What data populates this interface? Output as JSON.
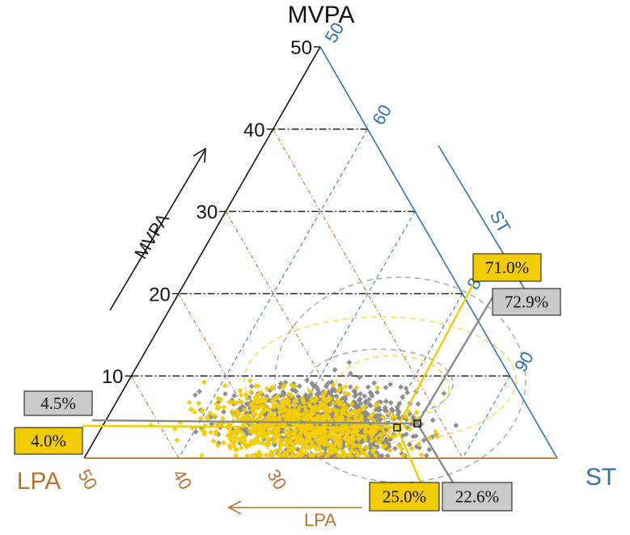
{
  "chart_data": {
    "type": "ternary-scatter",
    "axes": {
      "top": {
        "label": "MVPA",
        "color": "#111111",
        "ticks": [
          10,
          20,
          30,
          40,
          50
        ]
      },
      "left": {
        "label": "LPA",
        "color": "#b9722b",
        "ticks": [
          30,
          40,
          50
        ]
      },
      "right": {
        "label": "ST",
        "color": "#2f74a8",
        "ticks": [
          50,
          60,
          80,
          90
        ]
      }
    },
    "ranges": {
      "MVPA": [
        0,
        50
      ],
      "ST": [
        50,
        100
      ],
      "LPA": [
        0,
        50
      ]
    },
    "arrow_labels": {
      "mvpa": "MVPA",
      "st": "ST",
      "lpa": "LPA"
    },
    "series": [
      {
        "color": "#8a8a8a",
        "marker": "diamond"
      },
      {
        "color": "#f2cc00",
        "marker": "diamond"
      }
    ],
    "means": [
      {
        "color": "#8a8a8a",
        "MVPA": 4.5,
        "ST": 72.9,
        "LPA": 22.6
      },
      {
        "color": "#f2cc00",
        "MVPA": 4.0,
        "ST": 71.0,
        "LPA": 25.0
      }
    ],
    "callouts": {
      "gray_mvpa": "4.5%",
      "yellow_mvpa": "4.0%",
      "yellow_st": "71.0%",
      "gray_st": "72.9%",
      "yellow_lpa": "25.0%",
      "gray_lpa": "22.6%"
    },
    "grid": true
  }
}
